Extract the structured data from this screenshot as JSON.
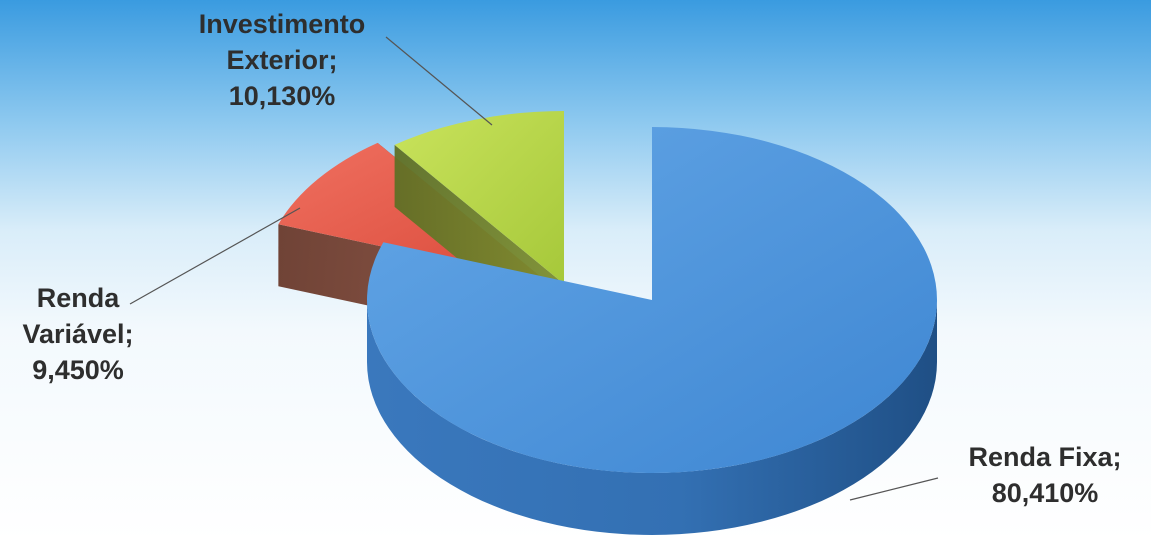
{
  "chart_data": {
    "type": "pie",
    "title": "",
    "categories": [
      "Renda Fixa",
      "Renda Variável",
      "Investimento Exterior"
    ],
    "values": [
      80.41,
      9.45,
      10.13
    ],
    "labels": [
      [
        "Renda Fixa;",
        "80,410%"
      ],
      [
        "Renda",
        "Variável;",
        "9,450%"
      ],
      [
        "Investimento",
        "Exterior;",
        "10,130%"
      ]
    ],
    "colors": {
      "Renda Fixa": "#4a90d9",
      "Renda Variável": "#e85a4a",
      "Investimento Exterior": "#b8d94a"
    },
    "style": "3d-exploded",
    "legend": "none"
  }
}
